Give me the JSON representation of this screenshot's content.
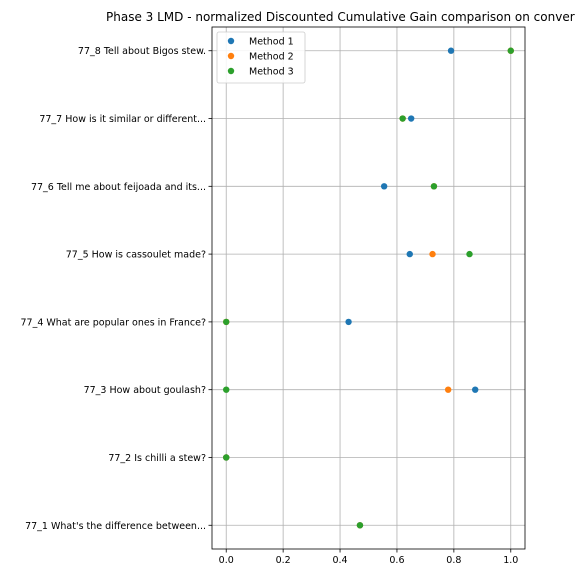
{
  "chart_data": {
    "type": "scatter",
    "title": "Phase 3 LMD - normalized Discounted Cumulative Gain comparison on conver",
    "xlabel": "",
    "ylabel": "",
    "xlim": [
      -0.05,
      1.05
    ],
    "x_ticks": [
      0.0,
      0.2,
      0.4,
      0.6,
      0.8,
      1.0
    ],
    "x_tick_labels": [
      "0.0",
      "0.2",
      "0.4",
      "0.6",
      "0.8",
      "1.0"
    ],
    "categories": [
      "77_1 What's the difference between...",
      "77_2 Is chilli a stew?",
      "77_3 How about goulash?",
      "77_4 What are popular ones in France?",
      "77_5 How is cassoulet made?",
      "77_6 Tell me about feijoada and its...",
      "77_7 How is it similar or different...",
      "77_8 Tell about Bigos stew."
    ],
    "grid": true,
    "legend_position": "top-left",
    "series": [
      {
        "name": "Method 1",
        "color": "#1f77b4",
        "values": [
          0.47,
          0.0,
          0.875,
          0.43,
          0.645,
          0.555,
          0.65,
          0.79
        ]
      },
      {
        "name": "Method 2",
        "color": "#ff7f0e",
        "values": [
          0.47,
          0.0,
          0.78,
          0.0,
          0.725,
          0.73,
          0.62,
          1.0
        ]
      },
      {
        "name": "Method 3",
        "color": "#2ca02c",
        "values": [
          0.47,
          0.0,
          0.0,
          0.0,
          0.855,
          0.73,
          0.62,
          1.0
        ]
      }
    ]
  }
}
